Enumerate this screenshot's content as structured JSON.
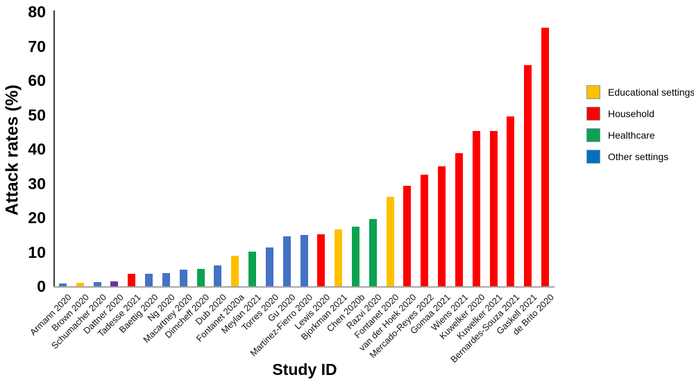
{
  "chart_data": {
    "type": "bar",
    "title": "",
    "xlabel": "Study ID",
    "ylabel": "Attack rates (%)",
    "ylim": [
      0,
      80
    ],
    "yticks": [
      0,
      10,
      20,
      30,
      40,
      50,
      60,
      70,
      80
    ],
    "grid": false,
    "legend_position": "right",
    "legend": [
      {
        "label": "Educational settings",
        "color": "#FFC000"
      },
      {
        "label": "Household",
        "color": "#FF0000"
      },
      {
        "label": "Healthcare",
        "color": "#0CA24F"
      },
      {
        "label": "Other settings",
        "color": "#0070C0"
      }
    ],
    "bar_colors": {
      "Educational settings": "#FFC000",
      "Household": "#FF0000",
      "Healthcare": "#0CA24F",
      "Other settings": "#4472C4",
      "Unlabeled (purple)": "#7030A0"
    },
    "points": [
      {
        "label": "Armann 2020",
        "value": 0.8,
        "category": "Other settings"
      },
      {
        "label": "Brown 2020",
        "value": 1.0,
        "category": "Educational settings"
      },
      {
        "label": "Schumacher 2020",
        "value": 1.2,
        "category": "Other settings"
      },
      {
        "label": "Dattner 2020",
        "value": 1.4,
        "category": "Unlabeled (purple)"
      },
      {
        "label": "Tadesse 2021",
        "value": 3.6,
        "category": "Household"
      },
      {
        "label": "Baettig 2020",
        "value": 3.7,
        "category": "Other settings"
      },
      {
        "label": "Ng 2020",
        "value": 3.9,
        "category": "Other settings"
      },
      {
        "label": "Macartney 2020",
        "value": 4.8,
        "category": "Other settings"
      },
      {
        "label": "Dimcheff 2020",
        "value": 5.0,
        "category": "Healthcare"
      },
      {
        "label": "Dub 2020",
        "value": 6.1,
        "category": "Other settings"
      },
      {
        "label": "Fontanet 2020a",
        "value": 8.9,
        "category": "Educational settings"
      },
      {
        "label": "Meylan 2021",
        "value": 10.1,
        "category": "Healthcare"
      },
      {
        "label": "Torres 2020",
        "value": 11.3,
        "category": "Other settings"
      },
      {
        "label": "Gu 2020",
        "value": 14.5,
        "category": "Other settings"
      },
      {
        "label": "Martinez-Fierro 2020",
        "value": 15.0,
        "category": "Other settings"
      },
      {
        "label": "Lewis 2020",
        "value": 15.1,
        "category": "Household"
      },
      {
        "label": "Bjorkman 2021",
        "value": 16.6,
        "category": "Educational settings"
      },
      {
        "label": "Chen 2020b",
        "value": 17.3,
        "category": "Healthcare"
      },
      {
        "label": "Razvi 2020",
        "value": 19.5,
        "category": "Healthcare"
      },
      {
        "label": "Fontanet 2020",
        "value": 26.0,
        "category": "Educational settings"
      },
      {
        "label": "van der Hoek 2020",
        "value": 29.2,
        "category": "Household"
      },
      {
        "label": "Mercado-Reyes 2022",
        "value": 32.5,
        "category": "Household"
      },
      {
        "label": "Gomaa 2021",
        "value": 35.0,
        "category": "Household"
      },
      {
        "label": "Wiens 2021",
        "value": 38.7,
        "category": "Household"
      },
      {
        "label": "Kuwelker 2020",
        "value": 45.2,
        "category": "Household"
      },
      {
        "label": "Kuwelker 2021",
        "value": 45.2,
        "category": "Household"
      },
      {
        "label": "Bernardes-Souza 2021",
        "value": 49.4,
        "category": "Household"
      },
      {
        "label": "Gaskell 2021",
        "value": 64.5,
        "category": "Household"
      },
      {
        "label": "de Brito 2020",
        "value": 75.3,
        "category": "Household"
      }
    ]
  }
}
